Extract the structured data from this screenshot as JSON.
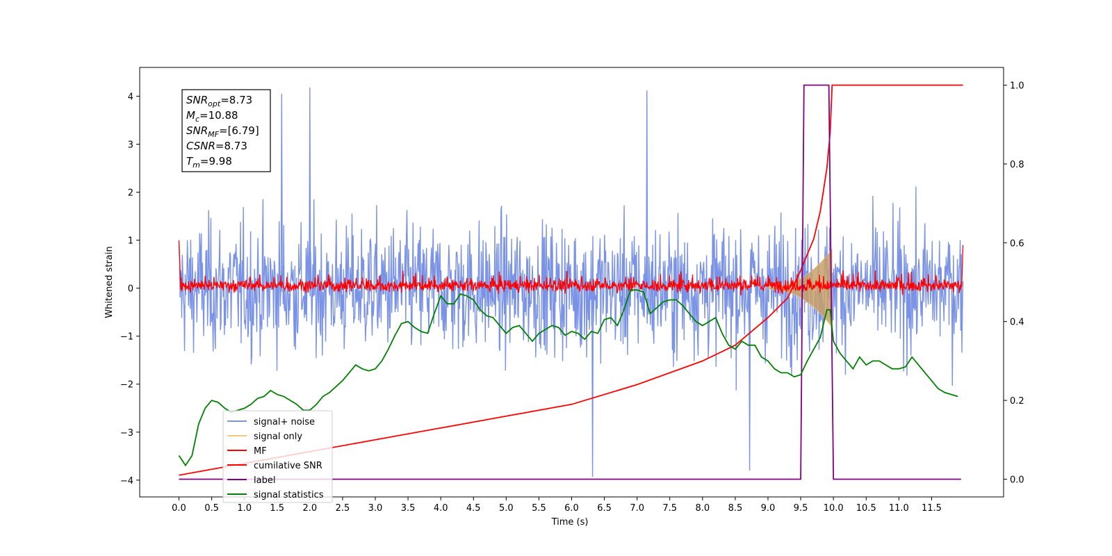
{
  "chart_data": {
    "type": "line",
    "xlabel": "Time (s)",
    "ylabel": "Whitened strain",
    "xlim": [
      -0.6,
      12.6
    ],
    "ylim": [
      -4.35,
      4.6
    ],
    "y2lim": [
      -0.045,
      1.045
    ],
    "x_ticks": [
      "0.0",
      "0.5",
      "1.0",
      "1.5",
      "2.0",
      "2.5",
      "3.0",
      "3.5",
      "4.0",
      "4.5",
      "5.0",
      "5.5",
      "6.0",
      "6.5",
      "7.0",
      "7.5",
      "8.0",
      "8.5",
      "9.0",
      "9.5",
      "10.0",
      "10.5",
      "11.0",
      "11.5"
    ],
    "y_ticks": [
      "4",
      "3",
      "2",
      "1",
      "0",
      "−1",
      "−2",
      "−3",
      "−4"
    ],
    "y2_ticks": [
      "1.0",
      "0.8",
      "0.6",
      "0.4",
      "0.2",
      "0.0"
    ],
    "legend_position": "lower-left",
    "annotation": {
      "lines": [
        {
          "name": "SNR",
          "sub": "opt",
          "value": "=8.73"
        },
        {
          "name": "M",
          "sub": "c",
          "value": "=10.88"
        },
        {
          "name": "SNR",
          "sub": "MF",
          "value": "=[6.79]"
        },
        {
          "name": "CSNR",
          "sub": "",
          "value": "=8.73"
        },
        {
          "name": "T",
          "sub": "m",
          "value": "=9.98"
        }
      ]
    },
    "series": [
      {
        "name": "signal+ noise",
        "color": "#7b93e6",
        "axis": "left",
        "description_values": "noise roughly within [-2.4, 2.5], spikes to about 4.2 and down to -3.9",
        "extremes": [
          [
            2.0,
            4.18
          ],
          [
            6.32,
            -3.93
          ],
          [
            8.72,
            -3.8
          ],
          [
            7.15,
            4.12
          ],
          [
            1.57,
            4.05
          ]
        ]
      },
      {
        "name": "signal only",
        "color": "#f5c77a",
        "axis": "left",
        "chirp": {
          "t_start": 9.0,
          "t_end": 9.98,
          "peak_amplitude": 0.8
        }
      },
      {
        "name": "MF",
        "color": "#ff0000",
        "axis": "left",
        "range": [
          -0.2,
          0.5
        ],
        "edges": [
          [
            0.0,
            1.0
          ],
          [
            11.98,
            0.9
          ]
        ]
      },
      {
        "name": "cumilative SNR",
        "color": "#ff0000",
        "axis": "right",
        "x": [
          0.0,
          1.0,
          2.0,
          3.0,
          4.0,
          5.0,
          6.0,
          7.0,
          7.5,
          8.0,
          8.5,
          9.0,
          9.3,
          9.5,
          9.7,
          9.8,
          9.9,
          9.95,
          9.98,
          11.98
        ],
        "y": [
          0.01,
          0.04,
          0.07,
          0.1,
          0.13,
          0.16,
          0.19,
          0.24,
          0.27,
          0.3,
          0.34,
          0.41,
          0.46,
          0.53,
          0.61,
          0.68,
          0.79,
          0.88,
          1.0,
          1.0
        ]
      },
      {
        "name": "label",
        "color": "#800080",
        "axis": "right",
        "x": [
          0.0,
          9.5,
          9.55,
          9.93,
          10.0,
          11.95
        ],
        "y": [
          0.0,
          0.0,
          1.0,
          1.0,
          0.0,
          0.0
        ]
      },
      {
        "name": "signal statistics",
        "color": "#008000",
        "axis": "right",
        "x": [
          0.0,
          0.1,
          0.2,
          0.3,
          0.4,
          0.5,
          0.6,
          0.7,
          0.8,
          0.9,
          1.0,
          1.1,
          1.2,
          1.3,
          1.4,
          1.5,
          1.6,
          1.7,
          1.8,
          1.9,
          2.0,
          2.1,
          2.2,
          2.3,
          2.4,
          2.5,
          2.6,
          2.7,
          2.8,
          2.9,
          3.0,
          3.1,
          3.2,
          3.3,
          3.4,
          3.5,
          3.6,
          3.7,
          3.8,
          3.9,
          4.0,
          4.1,
          4.2,
          4.3,
          4.4,
          4.5,
          4.6,
          4.7,
          4.8,
          4.9,
          5.0,
          5.1,
          5.2,
          5.3,
          5.4,
          5.5,
          5.6,
          5.7,
          5.8,
          5.9,
          6.0,
          6.1,
          6.2,
          6.3,
          6.4,
          6.5,
          6.6,
          6.7,
          6.8,
          6.9,
          7.0,
          7.1,
          7.2,
          7.3,
          7.4,
          7.5,
          7.6,
          7.7,
          7.8,
          7.9,
          8.0,
          8.1,
          8.2,
          8.3,
          8.4,
          8.5,
          8.6,
          8.7,
          8.8,
          8.9,
          9.0,
          9.1,
          9.2,
          9.3,
          9.4,
          9.5,
          9.6,
          9.7,
          9.8,
          9.9,
          9.95,
          10.0,
          10.1,
          10.2,
          10.3,
          10.4,
          10.5,
          10.6,
          10.7,
          10.8,
          10.9,
          11.0,
          11.1,
          11.2,
          11.3,
          11.4,
          11.5,
          11.6,
          11.7,
          11.8,
          11.9
        ],
        "y": [
          0.06,
          0.035,
          0.06,
          0.14,
          0.18,
          0.2,
          0.195,
          0.18,
          0.17,
          0.175,
          0.18,
          0.19,
          0.205,
          0.21,
          0.225,
          0.215,
          0.21,
          0.2,
          0.19,
          0.175,
          0.175,
          0.19,
          0.21,
          0.22,
          0.235,
          0.25,
          0.27,
          0.29,
          0.28,
          0.275,
          0.28,
          0.3,
          0.33,
          0.365,
          0.395,
          0.4,
          0.385,
          0.375,
          0.37,
          0.42,
          0.465,
          0.445,
          0.445,
          0.47,
          0.465,
          0.455,
          0.43,
          0.415,
          0.41,
          0.39,
          0.37,
          0.385,
          0.39,
          0.37,
          0.35,
          0.37,
          0.38,
          0.39,
          0.385,
          0.365,
          0.375,
          0.37,
          0.355,
          0.375,
          0.37,
          0.405,
          0.41,
          0.39,
          0.43,
          0.48,
          0.48,
          0.475,
          0.42,
          0.435,
          0.45,
          0.455,
          0.455,
          0.44,
          0.42,
          0.4,
          0.39,
          0.4,
          0.41,
          0.37,
          0.34,
          0.33,
          0.35,
          0.34,
          0.34,
          0.31,
          0.3,
          0.28,
          0.27,
          0.27,
          0.26,
          0.265,
          0.3,
          0.33,
          0.36,
          0.43,
          0.43,
          0.35,
          0.32,
          0.3,
          0.28,
          0.31,
          0.29,
          0.3,
          0.3,
          0.29,
          0.28,
          0.28,
          0.285,
          0.31,
          0.29,
          0.27,
          0.25,
          0.23,
          0.22,
          0.215,
          0.21
        ]
      }
    ]
  }
}
